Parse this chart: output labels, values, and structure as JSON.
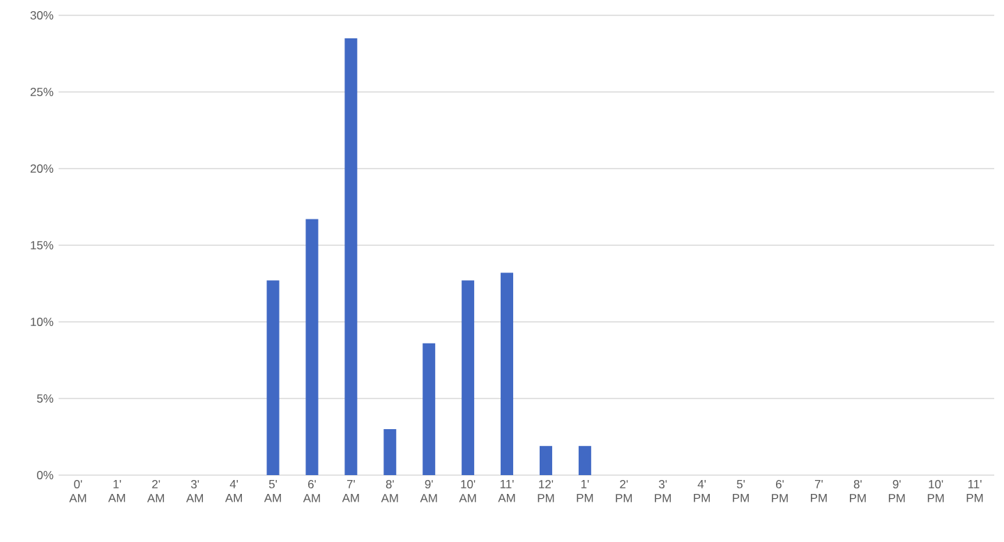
{
  "chart_data": {
    "type": "bar",
    "categories": [
      "0' AM",
      "1' AM",
      "2' AM",
      "3' AM",
      "4' AM",
      "5' AM",
      "6' AM",
      "7' AM",
      "8' AM",
      "9' AM",
      "10' AM",
      "11' AM",
      "12' PM",
      "1' PM",
      "2' PM",
      "3' PM",
      "4' PM",
      "5' PM",
      "6' PM",
      "7' PM",
      "8' PM",
      "9' PM",
      "10' PM",
      "11' PM"
    ],
    "values": [
      0,
      0,
      0,
      0,
      0,
      12.7,
      16.7,
      28.5,
      3.0,
      8.6,
      12.7,
      13.2,
      1.9,
      1.9,
      0,
      0,
      0,
      0,
      0,
      0,
      0,
      0,
      0,
      0
    ],
    "color": "#4169c4",
    "ylim": [
      0,
      30
    ],
    "yticks": [
      {
        "value": 0,
        "label": "0%"
      },
      {
        "value": 5,
        "label": "5%"
      },
      {
        "value": 10,
        "label": "10%"
      },
      {
        "value": 15,
        "label": "15%"
      },
      {
        "value": 20,
        "label": "20%"
      },
      {
        "value": 25,
        "label": "25%"
      },
      {
        "value": 30,
        "label": "30%"
      }
    ],
    "grid": "y"
  }
}
